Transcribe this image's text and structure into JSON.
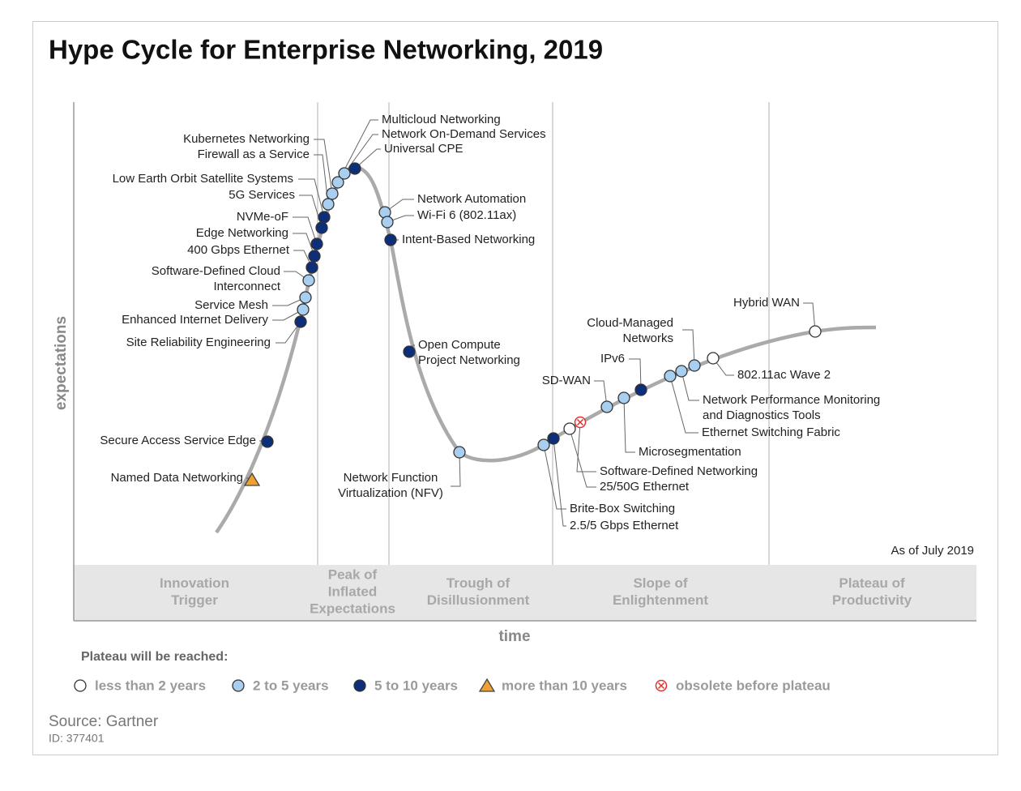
{
  "title": "Hype Cycle for Enterprise Networking, 2019",
  "y_axis": "expectations",
  "x_axis": "time",
  "as_of": "As of July 2019",
  "phases": [
    [
      "Innovation",
      "Trigger"
    ],
    [
      "Peak of",
      "Inflated",
      "Expectations"
    ],
    [
      "Trough of",
      "Disillusionment"
    ],
    [
      "Slope of",
      "Enlightenment"
    ],
    [
      "Plateau of",
      "Productivity"
    ]
  ],
  "legend": {
    "title": "Plateau will be reached:",
    "items": [
      {
        "label": "less than 2 years",
        "technologies": [
          [
            "25/50G Ethernet"
          ],
          [
            "802.11ac Wave 2"
          ],
          [
            "Hybrid WAN"
          ]
        ]
      },
      {
        "label": "2 to 5 years",
        "technologies": [
          [
            "Enhanced Internet Delivery"
          ],
          [
            "Service Mesh"
          ],
          [
            "Software-Defined Cloud",
            "Interconnect"
          ],
          [
            "Firewall as a Service"
          ],
          [
            "Kubernetes Networking"
          ],
          [
            "Multicloud Networking"
          ],
          [
            "Network On-Demand Services"
          ],
          [
            "Network Automation"
          ],
          [
            "Wi-Fi 6 (802.11ax)"
          ],
          [
            "Network Function",
            "Virtualization (NFV)"
          ],
          [
            "Brite-Box Switching"
          ],
          [
            "SD-WAN"
          ],
          [
            "Microsegmentation"
          ],
          [
            "Ethernet Switching Fabric"
          ],
          [
            "Network Performance Monitoring",
            "and Diagnostics Tools"
          ],
          [
            "Cloud-Managed",
            "Networks"
          ]
        ]
      },
      {
        "label": "5 to 10 years",
        "technologies": [
          [
            "Secure Access Service Edge"
          ],
          [
            "Site Reliability Engineering"
          ],
          [
            "400 Gbps Ethernet"
          ],
          [
            "Edge Networking"
          ],
          [
            "NVMe-oF"
          ],
          [
            "5G Services"
          ],
          [
            "Low Earth Orbit Satellite Systems"
          ],
          [
            "Universal CPE"
          ],
          [
            "Intent-Based Networking"
          ],
          [
            "Open Compute",
            "Project Networking"
          ],
          [
            "2.5/5 Gbps Ethernet"
          ],
          [
            "IPv6"
          ]
        ]
      },
      {
        "label": "more than 10 years",
        "technologies": [
          [
            "Named Data Networking"
          ]
        ]
      },
      {
        "label": "obsolete before plateau",
        "technologies": [
          [
            "Software-Defined Networking"
          ]
        ]
      }
    ]
  },
  "source": "Source: Gartner",
  "id": "ID: 377401"
}
